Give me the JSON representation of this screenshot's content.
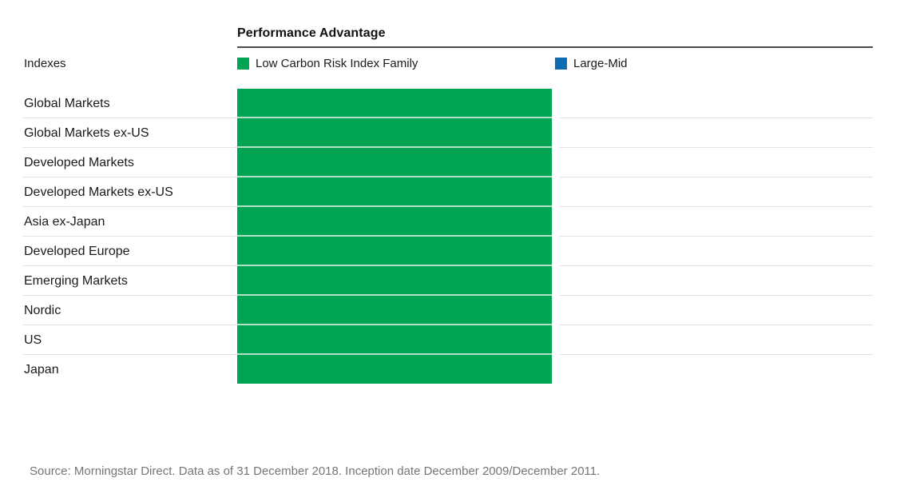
{
  "header": {
    "title": "Performance Advantage"
  },
  "indexes_label": "Indexes",
  "legend": [
    {
      "label": "Low Carbon Risk Index Family",
      "color": "#00a553"
    },
    {
      "label": "Large-Mid",
      "color": "#0d6cb2"
    }
  ],
  "rows": [
    "Global Markets",
    "Global Markets ex-US",
    "Developed Markets",
    "Developed Markets ex-US",
    "Asia ex-Japan",
    "Developed Europe",
    "Emerging Markets",
    "Nordic",
    "US",
    "Japan"
  ],
  "footer": {
    "source": "Source: Morningstar Direct. Data as of 31 December 2018. Inception date December 2009/December 2011."
  },
  "chart_data": {
    "type": "bar",
    "orientation": "horizontal",
    "title": "Performance Advantage",
    "categories": [
      "Global Markets",
      "Global Markets ex-US",
      "Developed Markets",
      "Developed Markets ex-US",
      "Asia ex-Japan",
      "Developed Europe",
      "Emerging Markets",
      "Nordic",
      "US",
      "Japan"
    ],
    "series": [
      {
        "name": "Low Carbon Risk Index Family",
        "color": "#00a553",
        "values": [
          1,
          1,
          1,
          1,
          1,
          1,
          1,
          1,
          1,
          1
        ]
      },
      {
        "name": "Large-Mid",
        "color": "#0d6cb2",
        "values": [
          0,
          0,
          0,
          0,
          0,
          0,
          0,
          0,
          0,
          0
        ]
      }
    ],
    "value_axis_visible": false,
    "grid": false,
    "legend_position": "top",
    "note": "All green bars are equal length; no numeric value axis or data labels are shown in the figure."
  }
}
